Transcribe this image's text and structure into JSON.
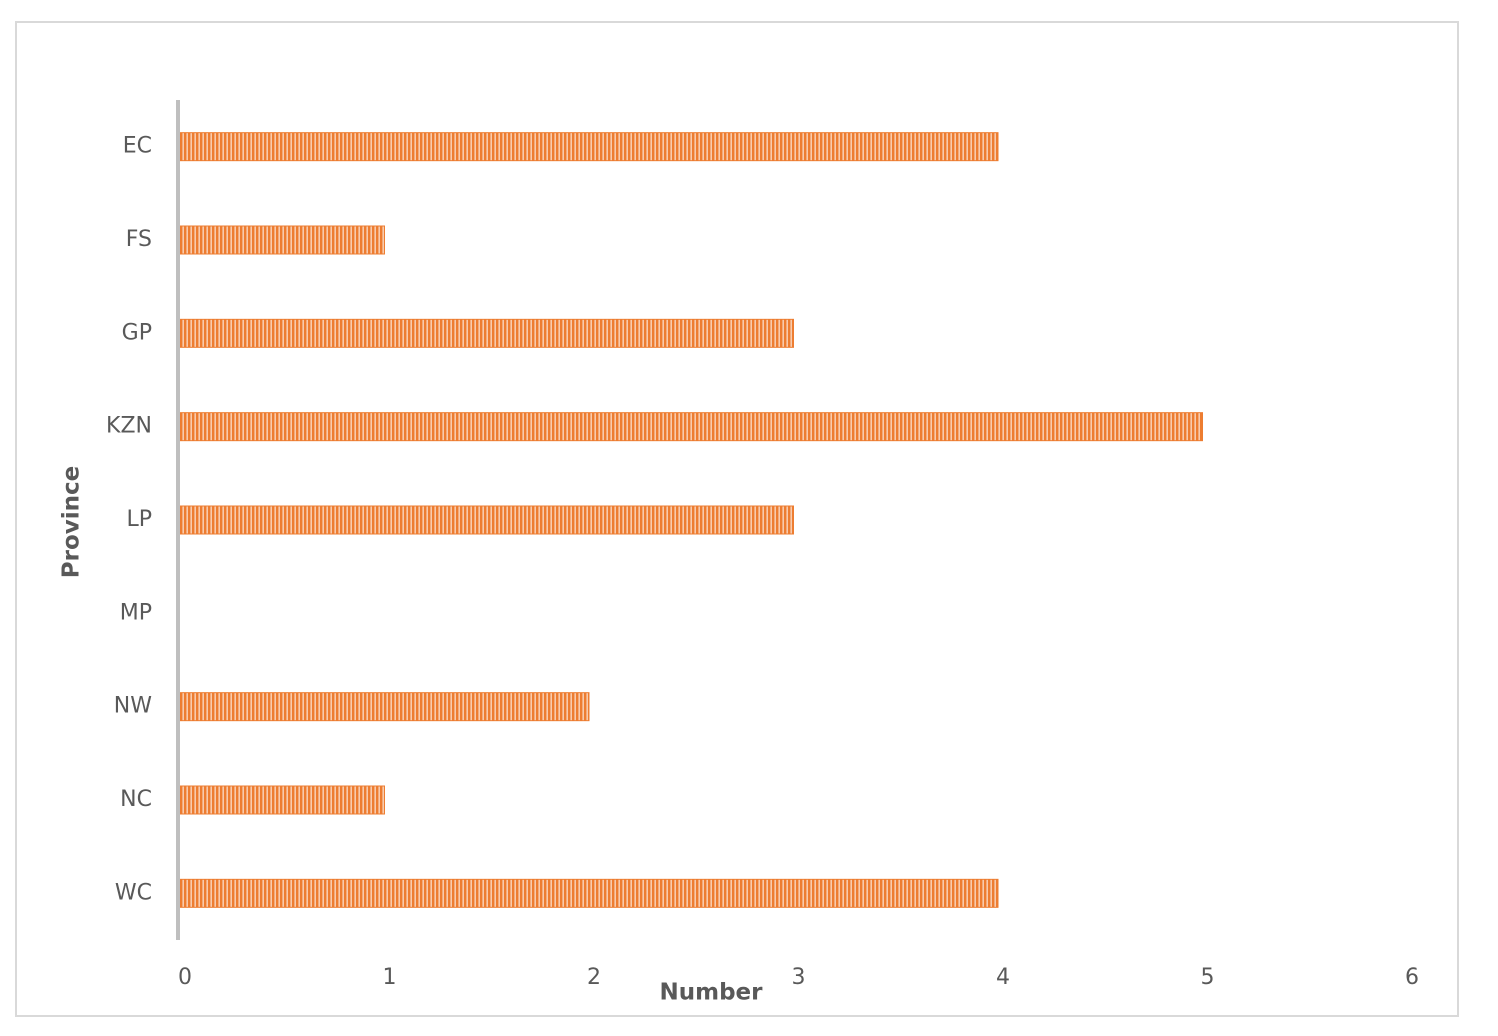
{
  "chart_data": {
    "type": "bar",
    "orientation": "horizontal",
    "x_label": "Number",
    "y_label": "Province",
    "categories": [
      "EC",
      "FS",
      "GP",
      "KZN",
      "LP",
      "MP",
      "NW",
      "NC",
      "WC"
    ],
    "values": [
      4,
      1,
      3,
      5,
      3,
      0,
      2,
      1,
      4
    ],
    "color": "#ed7d31",
    "xlim": [
      0,
      6
    ],
    "xticks": [
      0,
      1,
      2,
      3,
      4,
      5,
      6
    ],
    "grid": false
  }
}
